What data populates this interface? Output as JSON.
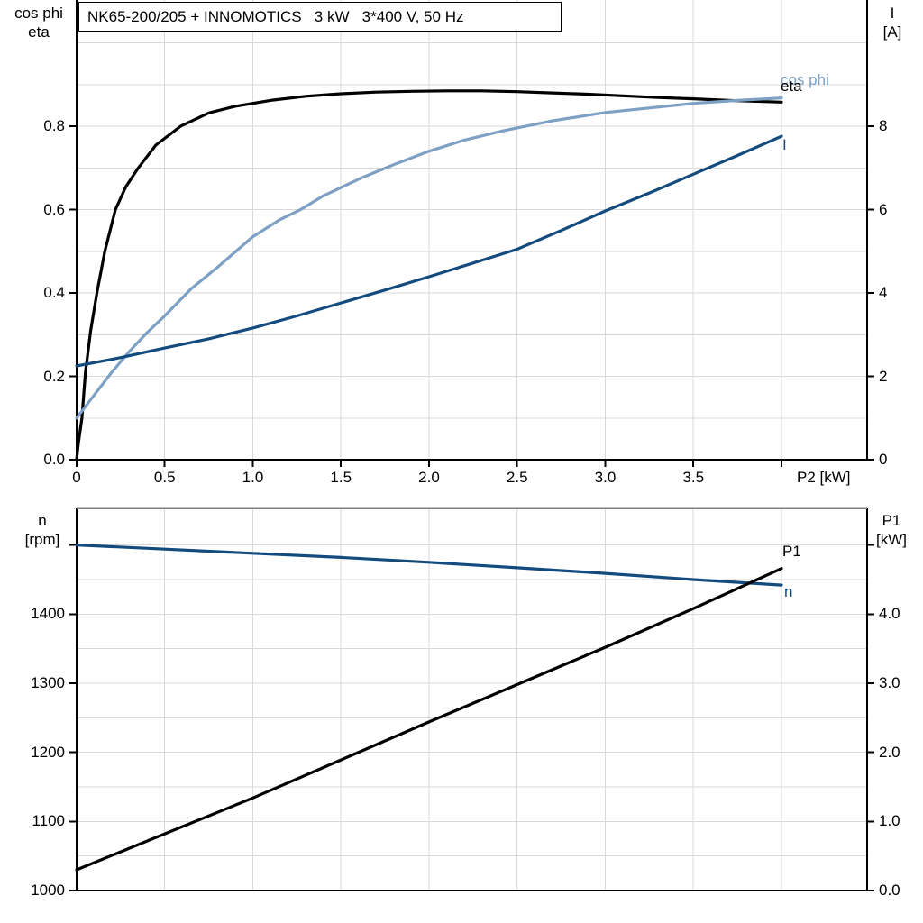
{
  "header": {
    "title": "NK65-200/205 + INNOMOTICS   3 kW   3*400 V, 50 Hz"
  },
  "colors": {
    "black": "#000000",
    "dark_blue": "#134b7f",
    "light_blue": "#7da0c4",
    "grid": "#d9d9d9",
    "frame": "#000000",
    "frame_top_gray": "#7f7f7f",
    "background": "#ffffff"
  },
  "chart_data": [
    {
      "type": "line",
      "name": "motor-performance-curves",
      "title": "NK65-200/205 + INNOMOTICS   3 kW   3*400 V, 50 Hz",
      "grid": true,
      "legend_position": "end-of-curve-labels",
      "x_axis": {
        "label": "P2 [kW]",
        "min": 0,
        "max": 4.486,
        "grid_step": 0.5,
        "ticks": [
          0,
          0.5,
          1.0,
          1.5,
          2.0,
          2.5,
          3.0,
          3.5,
          4.0
        ],
        "tick_labels": [
          "0",
          "0.5",
          "1.0",
          "1.5",
          "2.0",
          "2.5",
          "3.0",
          "3.5",
          ""
        ]
      },
      "y_axis_left": {
        "title_lines": [
          "cos phi",
          "eta"
        ],
        "min": 0,
        "max": 1.103,
        "grid_step": 0.1,
        "grid_max": 1.0,
        "ticks": [
          0,
          0.2,
          0.4,
          0.6,
          0.8
        ],
        "tick_labels": [
          "0.0",
          "0.2",
          "0.4",
          "0.6",
          "0.8"
        ]
      },
      "y_axis_right": {
        "title_lines": [
          "I",
          "[A]"
        ],
        "min": 0,
        "max": 11.03,
        "ticks": [
          0,
          2,
          4,
          6,
          8
        ],
        "tick_labels": [
          "0",
          "2",
          "4",
          "6",
          "8"
        ]
      },
      "series": [
        {
          "name": "eta",
          "label": "eta",
          "axis": "left",
          "color_key": "black",
          "points": [
            [
              0,
              0
            ],
            [
              0.01,
              0.04
            ],
            [
              0.03,
              0.1
            ],
            [
              0.05,
              0.21
            ],
            [
              0.08,
              0.31
            ],
            [
              0.115,
              0.4
            ],
            [
              0.16,
              0.5
            ],
            [
              0.22,
              0.6
            ],
            [
              0.28,
              0.655
            ],
            [
              0.35,
              0.7
            ],
            [
              0.45,
              0.755
            ],
            [
              0.59,
              0.8
            ],
            [
              0.75,
              0.832
            ],
            [
              0.9,
              0.848
            ],
            [
              1.1,
              0.862
            ],
            [
              1.3,
              0.872
            ],
            [
              1.5,
              0.878
            ],
            [
              1.7,
              0.882
            ],
            [
              1.9,
              0.884
            ],
            [
              2.1,
              0.885
            ],
            [
              2.3,
              0.885
            ],
            [
              2.5,
              0.883
            ],
            [
              2.7,
              0.88
            ],
            [
              2.9,
              0.877
            ],
            [
              3.1,
              0.873
            ],
            [
              3.3,
              0.869
            ],
            [
              3.5,
              0.866
            ],
            [
              3.7,
              0.862
            ],
            [
              4.0,
              0.858
            ]
          ]
        },
        {
          "name": "cos-phi",
          "label": "cos phi",
          "axis": "left",
          "color_key": "light_blue",
          "points": [
            [
              0,
              0.1
            ],
            [
              0.1,
              0.155
            ],
            [
              0.2,
              0.21
            ],
            [
              0.3,
              0.26
            ],
            [
              0.4,
              0.305
            ],
            [
              0.5,
              0.345
            ],
            [
              0.65,
              0.41
            ],
            [
              0.8,
              0.462
            ],
            [
              1.0,
              0.535
            ],
            [
              1.15,
              0.575
            ],
            [
              1.27,
              0.6
            ],
            [
              1.4,
              0.633
            ],
            [
              1.61,
              0.675
            ],
            [
              1.8,
              0.708
            ],
            [
              2.0,
              0.74
            ],
            [
              2.2,
              0.767
            ],
            [
              2.43,
              0.79
            ],
            [
              2.7,
              0.813
            ],
            [
              3.0,
              0.833
            ],
            [
              3.23,
              0.843
            ],
            [
              3.5,
              0.855
            ],
            [
              3.75,
              0.862
            ],
            [
              4.0,
              0.868
            ]
          ]
        },
        {
          "name": "current",
          "label": "I",
          "axis": "right",
          "color_key": "dark_blue",
          "points": [
            [
              0,
              2.25
            ],
            [
              0.25,
              2.45
            ],
            [
              0.5,
              2.68
            ],
            [
              0.75,
              2.9
            ],
            [
              1.0,
              3.16
            ],
            [
              1.25,
              3.45
            ],
            [
              1.5,
              3.76
            ],
            [
              1.75,
              4.07
            ],
            [
              2.0,
              4.39
            ],
            [
              2.25,
              4.72
            ],
            [
              2.5,
              5.05
            ],
            [
              2.75,
              5.5
            ],
            [
              3.0,
              5.97
            ],
            [
              3.25,
              6.4
            ],
            [
              3.5,
              6.85
            ],
            [
              3.75,
              7.3
            ],
            [
              4.0,
              7.76
            ]
          ]
        }
      ]
    },
    {
      "type": "line",
      "name": "speed-and-input-power-curves",
      "title": "",
      "grid": true,
      "x_axis": {
        "label": "",
        "min": 0,
        "max": 4.486,
        "grid_step": 0.5,
        "ticks": [],
        "tick_labels": []
      },
      "y_axis_left": {
        "title_lines": [
          "n",
          "[rpm]"
        ],
        "min": 1000,
        "max": 1553,
        "grid_step": 50,
        "grid_max": 1500,
        "ticks": [
          1000,
          1100,
          1200,
          1300,
          1400,
          1500
        ],
        "tick_labels": [
          "1000",
          "1100",
          "1200",
          "1300",
          "1400",
          ""
        ]
      },
      "y_axis_right": {
        "title_lines": [
          "P1",
          "[kW]"
        ],
        "min": 0,
        "max": 5.53,
        "ticks": [
          0,
          1,
          2,
          3,
          4,
          5
        ],
        "tick_labels": [
          "0.0",
          "1.0",
          "2.0",
          "3.0",
          "4.0",
          ""
        ]
      },
      "series": [
        {
          "name": "speed",
          "label": "n",
          "axis": "left",
          "color_key": "dark_blue",
          "points": [
            [
              0,
              1500
            ],
            [
              0.5,
              1494
            ],
            [
              1.0,
              1488
            ],
            [
              1.5,
              1482
            ],
            [
              2.0,
              1475
            ],
            [
              2.5,
              1467
            ],
            [
              3.0,
              1459
            ],
            [
              3.5,
              1450
            ],
            [
              4.0,
              1442
            ]
          ]
        },
        {
          "name": "input-power",
          "label": "P1",
          "axis": "right",
          "color_key": "black",
          "points": [
            [
              0,
              0.3
            ],
            [
              0.5,
              0.82
            ],
            [
              1.0,
              1.34
            ],
            [
              1.5,
              1.89
            ],
            [
              2.0,
              2.44
            ],
            [
              2.5,
              2.98
            ],
            [
              3.0,
              3.52
            ],
            [
              3.5,
              4.08
            ],
            [
              4.0,
              4.66
            ]
          ]
        }
      ]
    }
  ]
}
